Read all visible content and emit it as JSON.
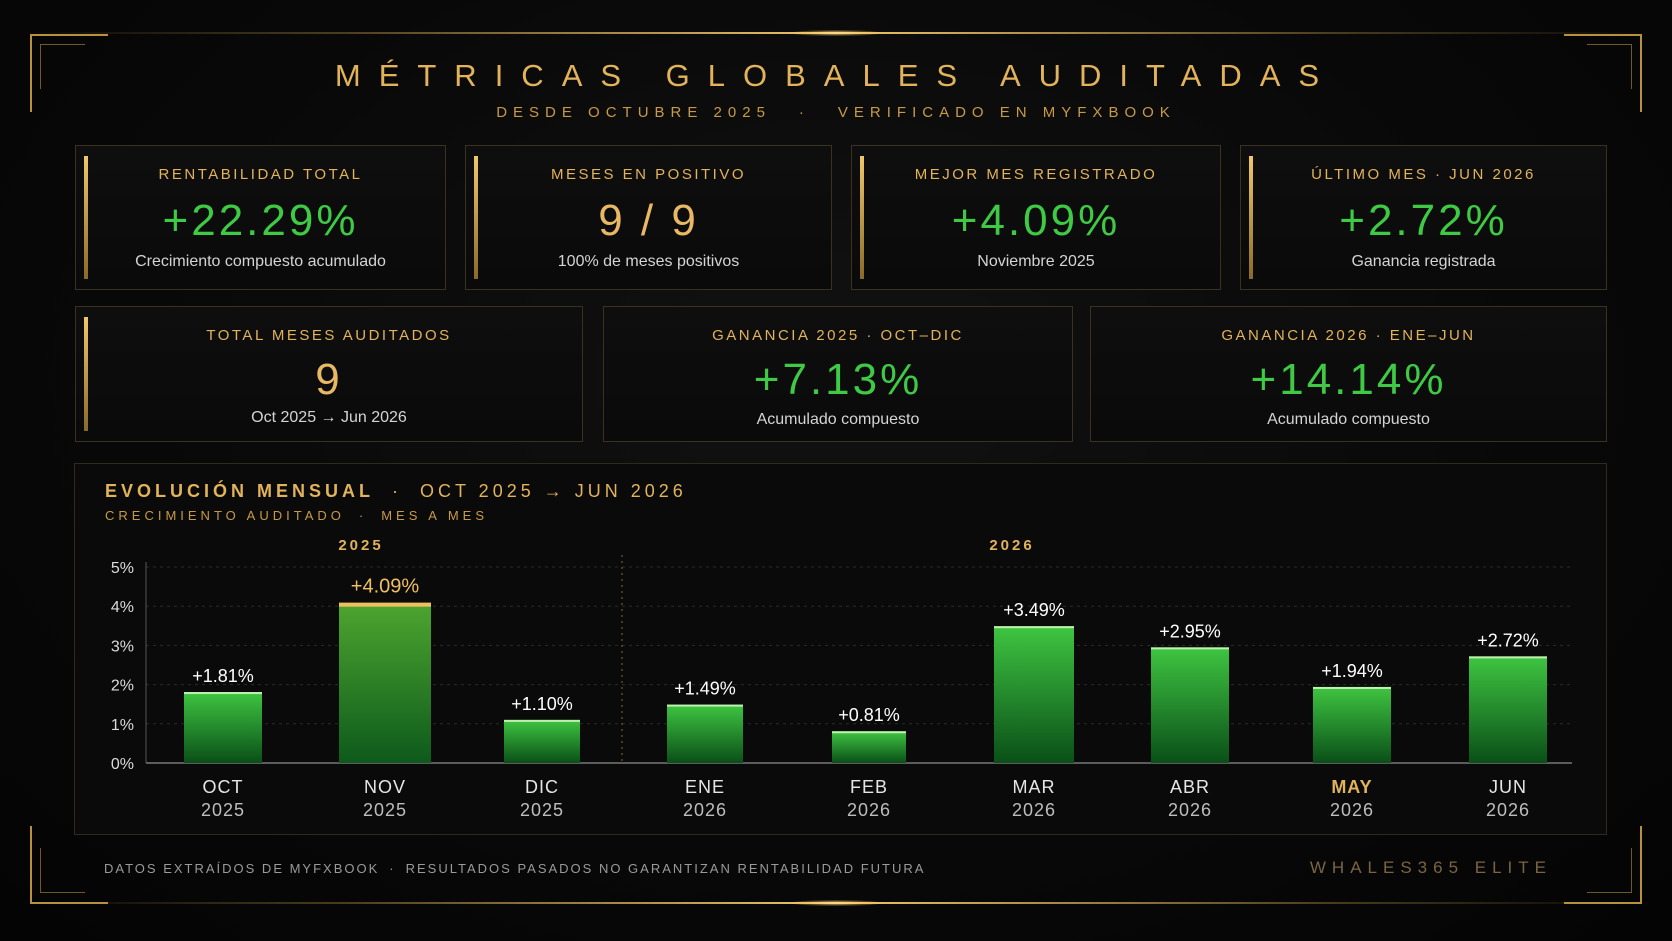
{
  "header": {
    "title": "MÉTRICAS GLOBALES AUDITADAS",
    "sub_left": "DESDE OCTUBRE 2025",
    "sub_sep": "·",
    "sub_right": "VERIFICADO EN MYFXBOOK"
  },
  "cards_row1": [
    {
      "label": "RENTABILIDAD TOTAL",
      "value": "+22.29%",
      "desc": "Crecimiento compuesto acumulado"
    },
    {
      "label": "MESES EN POSITIVO",
      "value": "9 / 9",
      "desc": "100% de meses positivos"
    },
    {
      "label": "MEJOR MES REGISTRADO",
      "value": "+4.09%",
      "desc": "Noviembre 2025"
    },
    {
      "label": "ÚLTIMO MES · JUN 2026",
      "value": "+2.72%",
      "desc": "Ganancia registrada"
    }
  ],
  "cards_row2": [
    {
      "label": "TOTAL MESES AUDITADOS",
      "value": "9",
      "desc": "Oct 2025 → Jun 2026"
    },
    {
      "label": "GANANCIA 2025 · OCT–DIC",
      "value": "+7.13%",
      "desc": "Acumulado compuesto"
    },
    {
      "label": "GANANCIA 2026 · ENE–JUN",
      "value": "+14.14%",
      "desc": "Acumulado compuesto"
    }
  ],
  "chart_header": {
    "title": "EVOLUCIÓN MENSUAL",
    "sep": "·",
    "range": "OCT 2025 → JUN 2026",
    "sub_left": "CRECIMIENTO AUDITADO",
    "sub_right": "MES A MES"
  },
  "chart_data": {
    "type": "bar",
    "title": "EVOLUCIÓN MENSUAL · OCT 2025 → JUN 2026",
    "categories": [
      {
        "month": "OCT",
        "year": "2025"
      },
      {
        "month": "NOV",
        "year": "2025"
      },
      {
        "month": "DIC",
        "year": "2025"
      },
      {
        "month": "ENE",
        "year": "2026"
      },
      {
        "month": "FEB",
        "year": "2026"
      },
      {
        "month": "MAR",
        "year": "2026"
      },
      {
        "month": "ABR",
        "year": "2026"
      },
      {
        "month": "MAY",
        "year": "2026"
      },
      {
        "month": "JUN",
        "year": "2026"
      }
    ],
    "values": [
      1.81,
      4.09,
      1.1,
      1.49,
      0.81,
      3.49,
      2.95,
      1.94,
      2.72
    ],
    "data_labels": [
      "+1.81%",
      "+4.09%",
      "+1.10%",
      "+1.49%",
      "+0.81%",
      "+3.49%",
      "+2.95%",
      "+1.94%",
      "+2.72%"
    ],
    "highlight_bar": "NOV",
    "highlight_month_label": "MAY",
    "ylim": [
      0,
      5
    ],
    "yticks": [
      "0%",
      "1%",
      "2%",
      "3%",
      "4%",
      "5%"
    ],
    "year_groups": [
      "2025",
      "2026"
    ],
    "grid": true,
    "colors": {
      "bar_top": "#3cc23e",
      "bar_bottom": "#0c5a1c",
      "highlight_cap": "#f0c060",
      "axis": "#aaaaaa",
      "grid": "#2a2a2a"
    }
  },
  "footer": {
    "left_a": "DATOS EXTRAÍDOS DE MYFXBOOK",
    "sep": "·",
    "left_b": "RESULTADOS PASADOS NO GARANTIZAN RENTABILIDAD FUTURA",
    "brand": "WHALES365 ELITE"
  },
  "colors": {
    "gold": "#e2b35a",
    "green": "#3fca45",
    "background": "#070707"
  }
}
